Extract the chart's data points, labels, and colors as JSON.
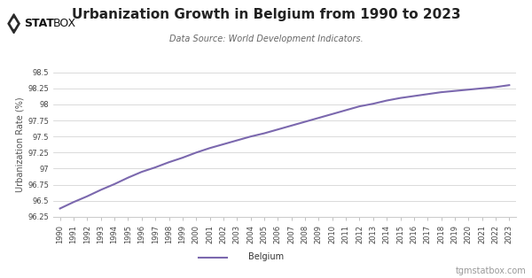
{
  "title": "Urbanization Growth in Belgium from 1990 to 2023",
  "subtitle": "Data Source: World Development Indicators.",
  "ylabel": "Urbanization Rate (%)",
  "line_color": "#7B68AE",
  "background_color": "#ffffff",
  "grid_color": "#cccccc",
  "years": [
    1990,
    1991,
    1992,
    1993,
    1994,
    1995,
    1996,
    1997,
    1998,
    1999,
    2000,
    2001,
    2002,
    2003,
    2004,
    2005,
    2006,
    2007,
    2008,
    2009,
    2010,
    2011,
    2012,
    2013,
    2014,
    2015,
    2016,
    2017,
    2018,
    2019,
    2020,
    2021,
    2022,
    2023
  ],
  "values": [
    96.38,
    96.48,
    96.57,
    96.67,
    96.76,
    96.86,
    96.95,
    97.02,
    97.1,
    97.17,
    97.25,
    97.32,
    97.38,
    97.44,
    97.5,
    97.55,
    97.61,
    97.67,
    97.73,
    97.79,
    97.85,
    97.91,
    97.97,
    98.01,
    98.06,
    98.1,
    98.13,
    98.16,
    98.19,
    98.21,
    98.23,
    98.25,
    98.27,
    98.3
  ],
  "ylim_min": 96.25,
  "ylim_max": 98.5,
  "yticks": [
    96.25,
    96.5,
    96.75,
    97.0,
    97.25,
    97.5,
    97.75,
    98.0,
    98.25,
    98.5
  ],
  "legend_label": "Belgium",
  "watermark": "tgmstatbox.com",
  "logo_bold": "STAT",
  "logo_light": "BOX",
  "title_fontsize": 11,
  "subtitle_fontsize": 7,
  "ylabel_fontsize": 7,
  "tick_fontsize": 6,
  "legend_fontsize": 7,
  "watermark_fontsize": 7,
  "line_width": 1.5
}
